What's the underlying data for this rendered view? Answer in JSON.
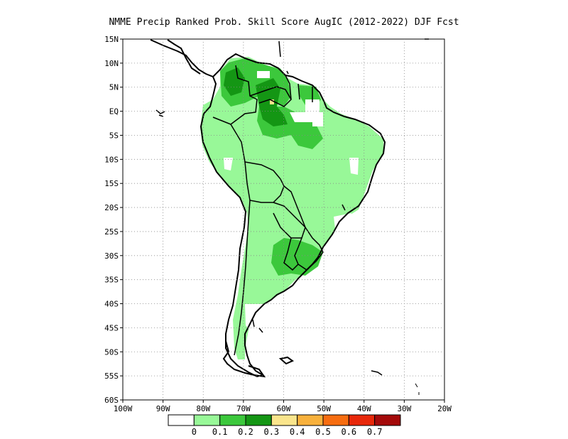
{
  "title": "NMME Precip Ranked Prob. Skill Score AugIC (2012-2022) DJF Fcst",
  "chart_data": {
    "type": "heatmap",
    "variable": "Ranked Probability Skill Score",
    "lon_range": [
      -100,
      -20
    ],
    "lat_range": [
      -60,
      15
    ],
    "grid": true,
    "y_ticks": [
      "15N",
      "10N",
      "5N",
      "EQ",
      "5S",
      "10S",
      "15S",
      "20S",
      "25S",
      "30S",
      "35S",
      "40S",
      "45S",
      "50S",
      "55S",
      "60S"
    ],
    "x_ticks": [
      "100W",
      "90W",
      "80W",
      "70W",
      "60W",
      "50W",
      "40W",
      "30W",
      "20W"
    ],
    "colorbar": {
      "labels": [
        "0",
        "0.1",
        "0.2",
        "0.3",
        "0.4",
        "0.5",
        "0.6",
        "0.7"
      ],
      "colors": [
        "#ffffff",
        "#98f898",
        "#3cc83c",
        "#149614",
        "#fae58c",
        "#f8b13c",
        "#f76d10",
        "#e8280a",
        "#a40a0a"
      ]
    }
  }
}
